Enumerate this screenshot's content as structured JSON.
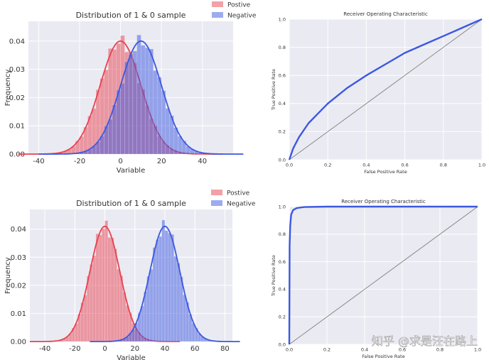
{
  "colors": {
    "positive": "#e8414f",
    "negative": "#3b58e0",
    "plot_bg": "#eaeaf2",
    "grid": "#ffffff",
    "diagonal": "#888888"
  },
  "watermark": "知乎 @求是汪在路上",
  "chart_data": [
    {
      "type": "area",
      "title": "Distribution of 1 & 0 sample",
      "xlabel": "Variable",
      "ylabel": "Frequency",
      "xlim": [
        -45,
        55
      ],
      "ylim": [
        0,
        0.047
      ],
      "xticks": [
        "-40",
        "-20",
        "0",
        "20",
        "40"
      ],
      "yticks": [
        "0.00",
        "0.01",
        "0.02",
        "0.03",
        "0.04"
      ],
      "legend": "top-right, outside",
      "series": [
        {
          "name": "Postive",
          "mean": 0,
          "sd": 10,
          "peak": 0.04
        },
        {
          "name": "Negative",
          "mean": 10,
          "sd": 10,
          "peak": 0.04
        }
      ]
    },
    {
      "type": "line",
      "title": "Receiver Operating Characteristic",
      "xlabel": "False Positive Rate",
      "ylabel": "True Positive Rate",
      "xlim": [
        0,
        1
      ],
      "ylim": [
        0,
        1
      ],
      "xticks": [
        "0.0",
        "0.2",
        "0.4",
        "0.6",
        "0.8",
        "1.0"
      ],
      "yticks": [
        "0.0",
        "0.2",
        "0.4",
        "0.6",
        "0.8",
        "1.0"
      ],
      "series": [
        {
          "x": [
            0,
            0.02,
            0.05,
            0.1,
            0.15,
            0.2,
            0.3,
            0.4,
            0.5,
            0.6,
            0.7,
            0.8,
            0.9,
            1.0
          ],
          "y": [
            0,
            0.08,
            0.16,
            0.26,
            0.33,
            0.4,
            0.51,
            0.6,
            0.68,
            0.76,
            0.82,
            0.88,
            0.94,
            1.0
          ]
        }
      ],
      "diagonal": [
        [
          0,
          0
        ],
        [
          1,
          1
        ]
      ]
    },
    {
      "type": "area",
      "title": "Distribution of 1 & 0 sample",
      "xlabel": "Variable",
      "ylabel": "Frequency",
      "xlim": [
        -50,
        85
      ],
      "ylim": [
        0,
        0.047
      ],
      "xticks": [
        "-40",
        "-20",
        "0",
        "20",
        "40",
        "60",
        "80"
      ],
      "yticks": [
        "0.00",
        "0.01",
        "0.02",
        "0.03",
        "0.04"
      ],
      "legend": "top-right, outside",
      "series": [
        {
          "name": "Postive",
          "mean": 0,
          "sd": 10,
          "peak": 0.041
        },
        {
          "name": "Negative",
          "mean": 40,
          "sd": 10,
          "peak": 0.041
        }
      ]
    },
    {
      "type": "line",
      "title": "Receiver Operating Characteristic",
      "xlabel": "False Positive Rate",
      "ylabel": "True Positive Rate",
      "xlim": [
        0,
        1
      ],
      "ylim": [
        0,
        1
      ],
      "xticks": [
        "0.0",
        "0.2",
        "0.4",
        "0.6",
        "0.8",
        "1.0"
      ],
      "yticks": [
        "0.0",
        "0.2",
        "0.4",
        "0.6",
        "0.8",
        "1.0"
      ],
      "series": [
        {
          "x": [
            0,
            0.002,
            0.005,
            0.01,
            0.02,
            0.04,
            0.08,
            0.2,
            0.5,
            1.0
          ],
          "y": [
            0,
            0.72,
            0.86,
            0.94,
            0.975,
            0.99,
            0.997,
            1.0,
            1.0,
            1.0
          ]
        }
      ],
      "diagonal": [
        [
          0,
          0
        ],
        [
          1,
          1
        ]
      ]
    }
  ]
}
